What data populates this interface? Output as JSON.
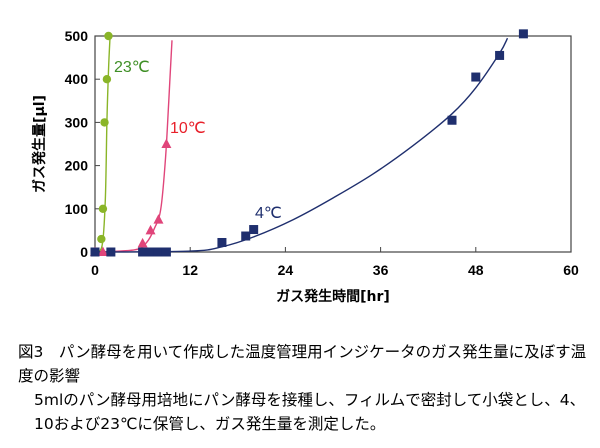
{
  "chart_data": {
    "type": "scatter",
    "xlabel": "ガス発生時間[hr]",
    "ylabel": "ガス発生量[μl]",
    "xlim": [
      0,
      60
    ],
    "ylim": [
      0,
      500
    ],
    "xticks": [
      0,
      12,
      24,
      36,
      48,
      60
    ],
    "yticks": [
      0,
      100,
      200,
      300,
      400,
      500
    ],
    "grid": false,
    "series": [
      {
        "name": "23℃",
        "color": "#8ab528",
        "label_color": "#3f8f26",
        "marker": "circle",
        "points": [
          [
            0,
            0
          ],
          [
            0.8,
            30
          ],
          [
            1,
            100
          ],
          [
            1.2,
            300
          ],
          [
            1.5,
            400
          ],
          [
            1.7,
            500
          ]
        ],
        "curve": [
          [
            0,
            0
          ],
          [
            0.9,
            15
          ],
          [
            1.3,
            120
          ],
          [
            1.5,
            300
          ],
          [
            1.7,
            420
          ],
          [
            1.9,
            500
          ]
        ]
      },
      {
        "name": "10℃",
        "color": "#e0457a",
        "label_color": "#e8202a",
        "marker": "triangle",
        "points": [
          [
            0,
            0
          ],
          [
            1,
            0
          ],
          [
            6,
            20
          ],
          [
            7,
            50
          ],
          [
            8,
            75
          ],
          [
            9,
            250
          ]
        ],
        "curve": [
          [
            0,
            0
          ],
          [
            5,
            5
          ],
          [
            6.5,
            22
          ],
          [
            7.5,
            55
          ],
          [
            8.3,
            100
          ],
          [
            8.9,
            220
          ],
          [
            9.3,
            350
          ],
          [
            9.7,
            490
          ]
        ]
      },
      {
        "name": "4℃",
        "color": "#1f2f6e",
        "label_color": "#1f2f6e",
        "marker": "square",
        "points": [
          [
            0,
            0
          ],
          [
            2,
            0
          ],
          [
            6,
            0
          ],
          [
            7,
            0
          ],
          [
            8,
            0
          ],
          [
            9,
            0
          ],
          [
            16,
            22
          ],
          [
            19,
            37
          ],
          [
            20,
            52
          ],
          [
            45,
            305
          ],
          [
            48,
            405
          ],
          [
            51,
            455
          ],
          [
            54,
            505
          ]
        ],
        "curve": [
          [
            0,
            0
          ],
          [
            12,
            2
          ],
          [
            16,
            12
          ],
          [
            20,
            35
          ],
          [
            25,
            75
          ],
          [
            30,
            125
          ],
          [
            35,
            180
          ],
          [
            40,
            245
          ],
          [
            45,
            320
          ],
          [
            48,
            380
          ],
          [
            51,
            460
          ],
          [
            52,
            495
          ]
        ]
      }
    ]
  },
  "caption": {
    "title": "図3　パン酵母を用いて作成した温度管理用インジケータのガス発生量に及ぼす温度の影響",
    "note": "5mlのパン酵母用培地にパン酵母を接種し、フィルムで密封して小袋とし、4、10および23℃に保管し、ガス発生量を測定した。"
  }
}
